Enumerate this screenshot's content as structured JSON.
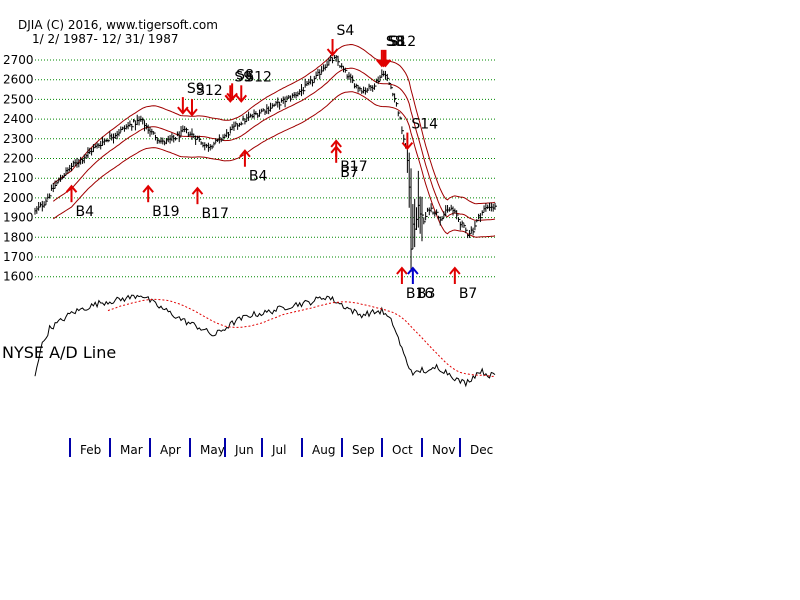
{
  "header": {
    "line1": "DJIA   (C) 2016, www.tigersoft.com",
    "line2": "1/ 2/ 1987- 12/ 31/ 1987"
  },
  "colors": {
    "price": "#000000",
    "band": "#a00000",
    "arrow_sell": "#e00000",
    "arrow_buy": "#e00000",
    "arrow_blue": "#0000cc",
    "grid": "#008800",
    "ad_ma": "#e00000",
    "month_tick": "#0000aa"
  },
  "chart_data": [
    {
      "type": "line",
      "title": "DJIA",
      "series_name": "DJIA daily (high-low bars)",
      "y_ticks": [
        2700,
        2600,
        2500,
        2400,
        2300,
        2200,
        2100,
        2000,
        1900,
        1800,
        1700,
        1600
      ],
      "ylim": [
        1600,
        2780
      ],
      "grid": true,
      "x_day_range": [
        0,
        252
      ],
      "price_anchors": [
        [
          0,
          1930
        ],
        [
          5,
          1975
        ],
        [
          10,
          2050
        ],
        [
          15,
          2110
        ],
        [
          20,
          2160
        ],
        [
          26,
          2200
        ],
        [
          32,
          2250
        ],
        [
          38,
          2290
        ],
        [
          45,
          2330
        ],
        [
          52,
          2370
        ],
        [
          58,
          2395
        ],
        [
          64,
          2330
        ],
        [
          70,
          2280
        ],
        [
          76,
          2300
        ],
        [
          82,
          2340
        ],
        [
          88,
          2310
        ],
        [
          94,
          2260
        ],
        [
          100,
          2285
        ],
        [
          106,
          2330
        ],
        [
          112,
          2380
        ],
        [
          118,
          2410
        ],
        [
          124,
          2440
        ],
        [
          130,
          2465
        ],
        [
          136,
          2490
        ],
        [
          142,
          2520
        ],
        [
          148,
          2560
        ],
        [
          154,
          2610
        ],
        [
          158,
          2665
        ],
        [
          162,
          2700
        ],
        [
          165,
          2705
        ],
        [
          168,
          2660
        ],
        [
          172,
          2610
        ],
        [
          176,
          2570
        ],
        [
          180,
          2545
        ],
        [
          184,
          2560
        ],
        [
          188,
          2600
        ],
        [
          191,
          2640
        ],
        [
          193,
          2600
        ],
        [
          196,
          2540
        ],
        [
          199,
          2440
        ],
        [
          202,
          2300
        ],
        [
          204,
          2200
        ],
        [
          206,
          1900
        ],
        [
          208,
          1850
        ],
        [
          210,
          1950
        ],
        [
          213,
          1880
        ],
        [
          216,
          1950
        ],
        [
          219,
          1930
        ],
        [
          222,
          1900
        ],
        [
          225,
          1925
        ],
        [
          228,
          1945
        ],
        [
          231,
          1910
        ],
        [
          234,
          1860
        ],
        [
          237,
          1820
        ],
        [
          240,
          1840
        ],
        [
          243,
          1900
        ],
        [
          246,
          1940
        ],
        [
          249,
          1960
        ],
        [
          252,
          1950
        ]
      ],
      "band": {
        "ma_window": 21,
        "upper_pct": 4.5,
        "lower_pct": 4.5
      },
      "signals": [
        {
          "label": "S4",
          "type": "sell",
          "day": 163,
          "price": 2705
        },
        {
          "label": "S8",
          "type": "sell",
          "day": 190,
          "price": 2650
        },
        {
          "label": "S8",
          "type": "sell",
          "day": 191,
          "price": 2650
        },
        {
          "label": "S12",
          "type": "sell",
          "day": 192,
          "price": 2650
        },
        {
          "label": "S9",
          "type": "sell",
          "day": 81,
          "price": 2410
        },
        {
          "label": "S12",
          "type": "sell",
          "day": 86,
          "price": 2400
        },
        {
          "label": "S8",
          "type": "sell",
          "day": 108,
          "price": 2480
        },
        {
          "label": "S9",
          "type": "sell",
          "day": 107,
          "price": 2470
        },
        {
          "label": "S12",
          "type": "sell",
          "day": 113,
          "price": 2470
        },
        {
          "label": "S14",
          "type": "sell",
          "day": 204,
          "price": 2230
        },
        {
          "label": "B4",
          "type": "buy",
          "day": 20,
          "price": 2100
        },
        {
          "label": "B19",
          "type": "buy",
          "day": 62,
          "price": 2100
        },
        {
          "label": "B17",
          "type": "buy",
          "day": 89,
          "price": 2090
        },
        {
          "label": "B4",
          "type": "buy",
          "day": 115,
          "price": 2280
        },
        {
          "label": "B17",
          "type": "buy",
          "day": 165,
          "price": 2330
        },
        {
          "label": "B7",
          "type": "buy",
          "day": 165,
          "price": 2300
        },
        {
          "label": "B16",
          "type": "buy",
          "day": 201,
          "price": 1600
        },
        {
          "label": "B3",
          "type": "buy_blue",
          "day": 207,
          "price": 1600
        },
        {
          "label": "B7",
          "type": "buy",
          "day": 230,
          "price": 1600
        }
      ]
    },
    {
      "type": "line",
      "title": "NYSE A/D Line",
      "series_name": "NYSE advance/decline line with moving average",
      "ylim": [
        0,
        100
      ],
      "grid": false,
      "x_day_range": [
        0,
        252
      ],
      "values_anchors": [
        [
          0,
          10
        ],
        [
          3,
          35
        ],
        [
          8,
          55
        ],
        [
          14,
          62
        ],
        [
          20,
          70
        ],
        [
          28,
          75
        ],
        [
          36,
          80
        ],
        [
          44,
          82
        ],
        [
          52,
          85
        ],
        [
          58,
          88
        ],
        [
          66,
          78
        ],
        [
          74,
          70
        ],
        [
          82,
          62
        ],
        [
          90,
          56
        ],
        [
          98,
          48
        ],
        [
          104,
          55
        ],
        [
          110,
          62
        ],
        [
          118,
          68
        ],
        [
          126,
          70
        ],
        [
          134,
          74
        ],
        [
          142,
          78
        ],
        [
          150,
          80
        ],
        [
          156,
          84
        ],
        [
          160,
          86
        ],
        [
          166,
          80
        ],
        [
          172,
          74
        ],
        [
          178,
          68
        ],
        [
          184,
          70
        ],
        [
          190,
          72
        ],
        [
          196,
          60
        ],
        [
          200,
          40
        ],
        [
          204,
          20
        ],
        [
          208,
          10
        ],
        [
          212,
          15
        ],
        [
          216,
          12
        ],
        [
          220,
          18
        ],
        [
          224,
          14
        ],
        [
          228,
          10
        ],
        [
          232,
          4
        ],
        [
          236,
          2
        ],
        [
          240,
          8
        ],
        [
          244,
          14
        ],
        [
          248,
          10
        ],
        [
          252,
          9
        ]
      ],
      "ma_window": 30
    }
  ],
  "ad_label": "NYSE A/D Line",
  "months": [
    "Feb",
    "Mar",
    "Apr",
    "May",
    "Jun",
    "Jul",
    "Aug",
    "Sep",
    "Oct",
    "Nov",
    "Dec"
  ]
}
